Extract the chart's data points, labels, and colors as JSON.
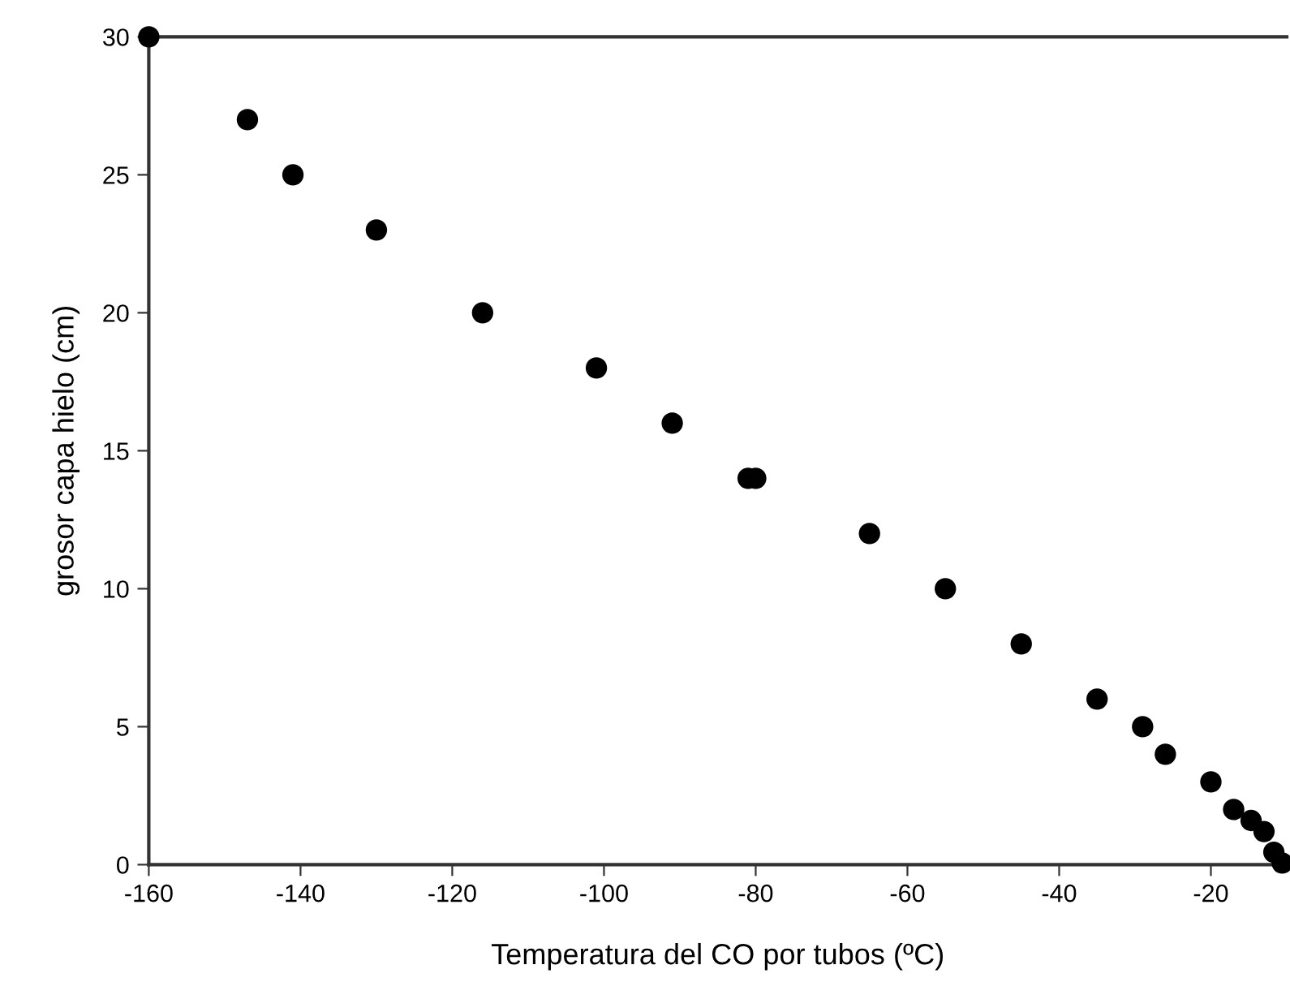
{
  "chart_data": {
    "type": "scatter",
    "xlabel": "Temperatura del CO por tubos (ºC)",
    "ylabel": "grosor capa hielo (cm)",
    "x": [
      -160,
      -147,
      -141,
      -130,
      -116,
      -101,
      -91,
      -81,
      -80,
      -65,
      -55,
      -45,
      -35,
      -29,
      -26,
      -20,
      -17,
      -14.7,
      -13,
      -11.7,
      -10.6
    ],
    "values": [
      30,
      27,
      25,
      23,
      20,
      18,
      16,
      14,
      14,
      12,
      10,
      8,
      6,
      5,
      4,
      3,
      2,
      1.6,
      1.2,
      0.45,
      0.06
    ],
    "color": "#000000",
    "marker": "circle",
    "xlim": [
      -160,
      -10
    ],
    "ylim": [
      0,
      30
    ],
    "xticks": [
      -160,
      -140,
      -120,
      -100,
      -80,
      -60,
      -40,
      -20
    ],
    "yticks": [
      0,
      5,
      10,
      15,
      20,
      25,
      30
    ],
    "grid": false,
    "legend": false
  }
}
